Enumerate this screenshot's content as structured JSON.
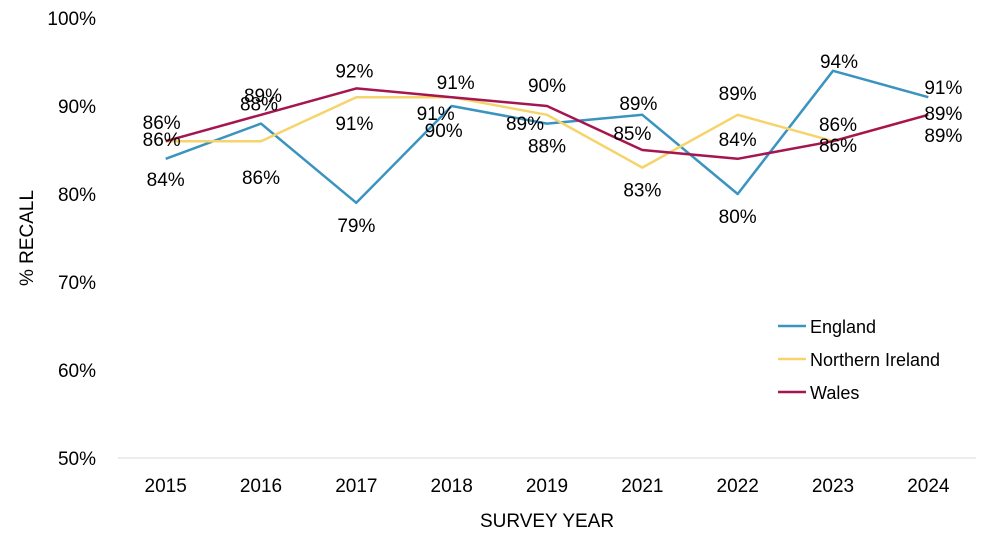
{
  "chart_data": {
    "type": "line",
    "title": "",
    "xlabel": "SURVEY YEAR",
    "ylabel": "% RECALL",
    "categories": [
      "2015",
      "2016",
      "2017",
      "2018",
      "2019",
      "2021",
      "2022",
      "2023",
      "2024"
    ],
    "ylim": [
      50,
      100
    ],
    "yticks": [
      50,
      60,
      70,
      80,
      90,
      100
    ],
    "ytick_labels": [
      "50%",
      "60%",
      "70%",
      "80%",
      "90%",
      "100%"
    ],
    "grid": false,
    "legend_position": "right",
    "series": [
      {
        "name": "England",
        "color": "#3a94bf",
        "values": [
          84,
          88,
          79,
          90,
          88,
          89,
          80,
          94,
          91
        ],
        "labels": [
          "84%",
          "88%",
          "79%",
          "90%",
          "88%",
          "89%",
          "80%",
          "94%",
          "91%"
        ]
      },
      {
        "name": "Northern Ireland",
        "color": "#f7d46b",
        "values": [
          86,
          86,
          91,
          91,
          89,
          83,
          89,
          86,
          89
        ],
        "labels": [
          "86%",
          "86%",
          "91%",
          "91%",
          "89%",
          "83%",
          "89%",
          "86%",
          "89%"
        ]
      },
      {
        "name": "Wales",
        "color": "#a5154f",
        "values": [
          86,
          89,
          92,
          91,
          90,
          85,
          84,
          86,
          89
        ],
        "labels": [
          "86%",
          "89%",
          "92%",
          "91%",
          "90%",
          "85%",
          "84%",
          "86%",
          "89%"
        ]
      }
    ]
  }
}
